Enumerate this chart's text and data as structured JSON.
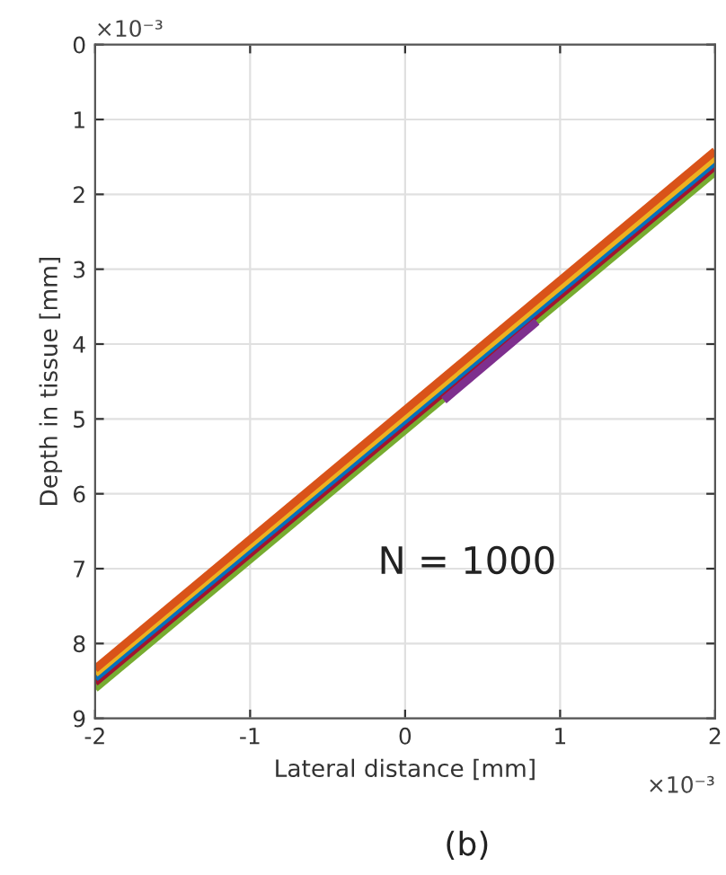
{
  "chart_data": {
    "type": "line",
    "xlabel": "Lateral distance [mm]",
    "ylabel": "Depth in tissue [mm]",
    "xlim": [
      -2,
      2
    ],
    "xticks": [
      -2,
      -1,
      0,
      1,
      2
    ],
    "ylim": [
      9,
      0
    ],
    "yticks": [
      0,
      1,
      2,
      3,
      4,
      5,
      6,
      7,
      8,
      9
    ],
    "grid": true,
    "line_style": "solid",
    "marker": "none",
    "series": [
      {
        "color": "#77ac30",
        "x": [
          -2,
          2
        ],
        "values": [
          8.6,
          1.7
        ]
      },
      {
        "color": "#a2142f",
        "x": [
          -2,
          2
        ],
        "values": [
          8.52,
          1.62
        ]
      },
      {
        "color": "#7e2f8e",
        "x": [
          0.25,
          0.85
        ],
        "values": [
          4.75,
          3.7
        ]
      },
      {
        "color": "#0072bd",
        "x": [
          -2,
          2
        ],
        "values": [
          8.46,
          1.56
        ]
      },
      {
        "color": "#edb120",
        "x": [
          -2,
          2
        ],
        "values": [
          8.4,
          1.5
        ]
      },
      {
        "color": "#d95319",
        "x": [
          -2,
          2
        ],
        "values": [
          8.34,
          1.42
        ]
      }
    ],
    "annotations": [
      "×10⁻³",
      "×10⁻³",
      "N = 1000",
      "(b)"
    ]
  }
}
